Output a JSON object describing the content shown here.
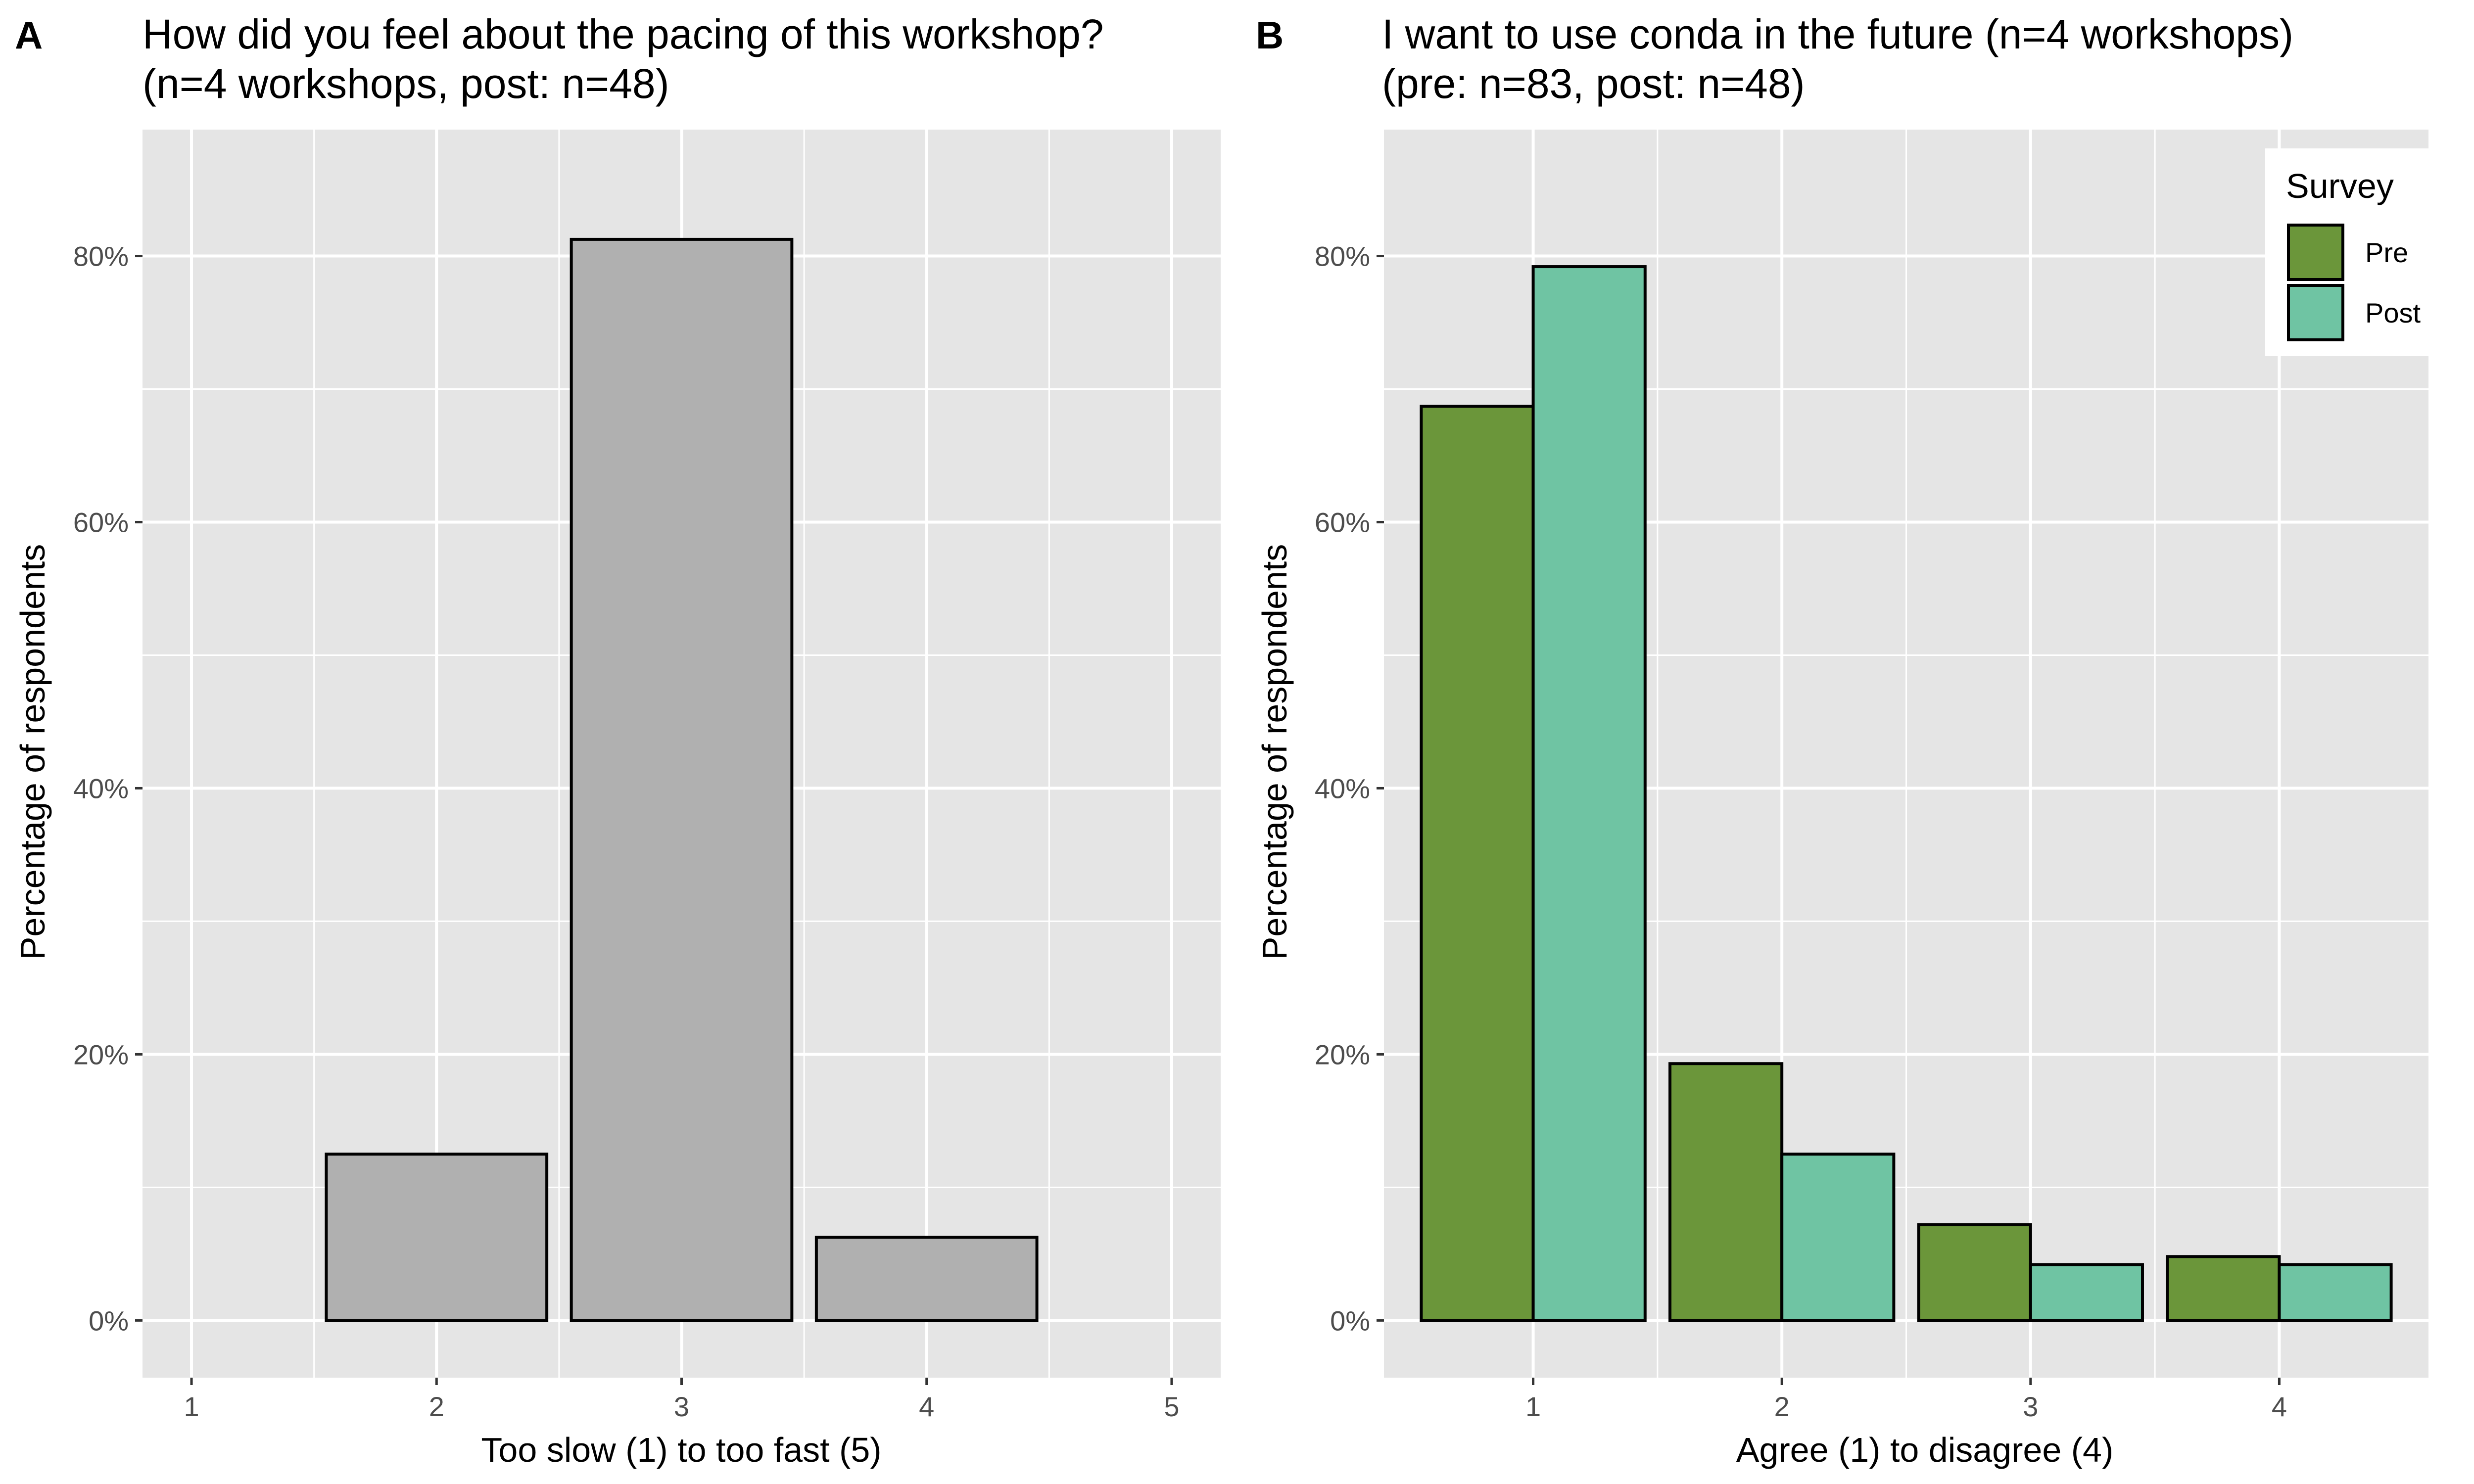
{
  "panels": [
    {
      "letter": "A",
      "title_line1": "How did you feel about the pacing of this workshop?",
      "title_line2": "(n=4 workshops, post: n=48)"
    },
    {
      "letter": "B",
      "title_line1": "I want to use conda in the future (n=4 workshops)",
      "title_line2": "(pre: n=83, post: n=48)"
    }
  ],
  "legend": {
    "title": "Survey",
    "items": [
      {
        "label": "Pre",
        "color": "#6b963a"
      },
      {
        "label": "Post",
        "color": "#6fc4a3"
      }
    ]
  },
  "colors": {
    "panel_background": "#e5e5e5",
    "grid_line": "#ffffff",
    "bar_outline": "#000000",
    "single_series_fill": "#b0b0b0"
  },
  "chart_data": [
    {
      "type": "bar",
      "title": "How did you feel about the pacing of this workshop? (n=4 workshops, post: n=48)",
      "xlabel": "Too slow (1) to too fast (5)",
      "ylabel": "Percentage of respondents",
      "x_ticks": [
        "1",
        "2",
        "3",
        "4",
        "5"
      ],
      "y_ticks": [
        "0%",
        "20%",
        "40%",
        "60%",
        "80%"
      ],
      "y_tick_values": [
        0,
        20,
        40,
        60,
        80
      ],
      "xlim": [
        0.8,
        5.2
      ],
      "ylim": [
        -4.3,
        89.5
      ],
      "grid": true,
      "legend": false,
      "categories": [
        2,
        3,
        4
      ],
      "values": [
        12.5,
        81.25,
        6.25
      ],
      "value_unit": "percent"
    },
    {
      "type": "bar",
      "title": "I want to use conda in the future (n=4 workshops) (pre: n=83, post: n=48)",
      "xlabel": "Agree (1) to disagree (4)",
      "ylabel": "Percentage of respondents",
      "x_ticks": [
        "1",
        "2",
        "3",
        "4"
      ],
      "y_ticks": [
        "0%",
        "20%",
        "40%",
        "60%",
        "80%"
      ],
      "y_tick_values": [
        0,
        20,
        40,
        60,
        80
      ],
      "xlim": [
        0.4,
        4.6
      ],
      "ylim": [
        -4.3,
        89.5
      ],
      "grid": true,
      "legend": true,
      "legend_position": "top-right",
      "categories": [
        1,
        2,
        3,
        4
      ],
      "series": [
        {
          "name": "Pre",
          "values": [
            68.7,
            19.3,
            7.2,
            4.8
          ]
        },
        {
          "name": "Post",
          "values": [
            79.2,
            12.5,
            4.2,
            4.2
          ]
        }
      ],
      "value_unit": "percent"
    }
  ]
}
